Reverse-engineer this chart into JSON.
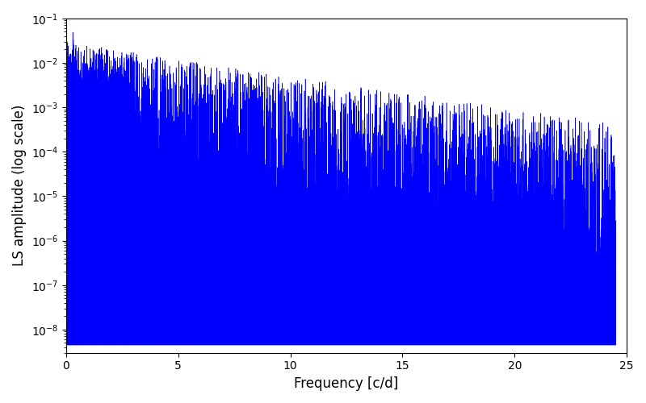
{
  "title": "",
  "xlabel": "Frequency [c/d]",
  "ylabel": "LS amplitude (log scale)",
  "xlim": [
    0,
    25
  ],
  "ylim": [
    3e-09,
    0.1
  ],
  "line_color": "#0000ff",
  "line_width": 0.4,
  "background_color": "#ffffff",
  "figsize": [
    8.0,
    5.0
  ],
  "dpi": 100,
  "freq_max": 24.5,
  "n_freqs": 3000,
  "seed": 12345
}
